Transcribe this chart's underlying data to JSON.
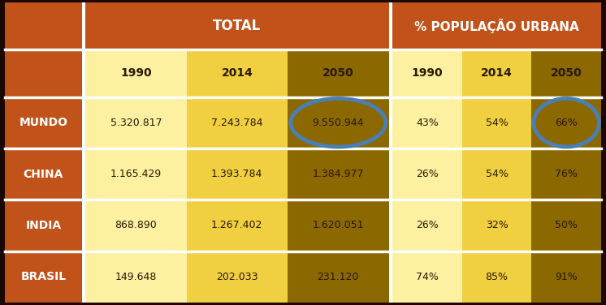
{
  "title_total": "TOTAL",
  "title_pop": "% POPULAÇÃO URBANA",
  "row_headers": [
    "MUNDO",
    "CHINA",
    "INDIA",
    "BRASIL"
  ],
  "col_headers_total": [
    "1990",
    "2014",
    "2050"
  ],
  "col_headers_pop": [
    "1990",
    "2014",
    "2050"
  ],
  "total_data": [
    [
      "5.320.817",
      "7.243.784",
      "9.550.944"
    ],
    [
      "1.165.429",
      "1.393.784",
      "1.384.977"
    ],
    [
      "868.890",
      "1.267.402",
      "1.620.051"
    ],
    [
      "149.648",
      "202.033",
      "231.120"
    ]
  ],
  "pop_data": [
    [
      "43%",
      "54%",
      "66%"
    ],
    [
      "26%",
      "54%",
      "76%"
    ],
    [
      "26%",
      "32%",
      "50%"
    ],
    [
      "74%",
      "85%",
      "91%"
    ]
  ],
  "color_header_bg": "#C0521A",
  "color_row_header_bg": "#C0521A",
  "color_col1_bg": "#FDF0A0",
  "color_col2_bg": "#F0D040",
  "color_col3_bg": "#8B6800",
  "color_col4_bg": "#FDF0A0",
  "color_col5_bg": "#F0D040",
  "color_col6_bg": "#8B6800",
  "color_header_text": "#FFFFFF",
  "color_data_text": "#2A1800",
  "color_row_header_text": "#FFFFFF",
  "color_circle": "#4A7FB5",
  "color_border": "#1A0800",
  "color_separator": "#FFFFFF",
  "figsize": [
    7.46,
    3.76
  ],
  "dpi": 100
}
